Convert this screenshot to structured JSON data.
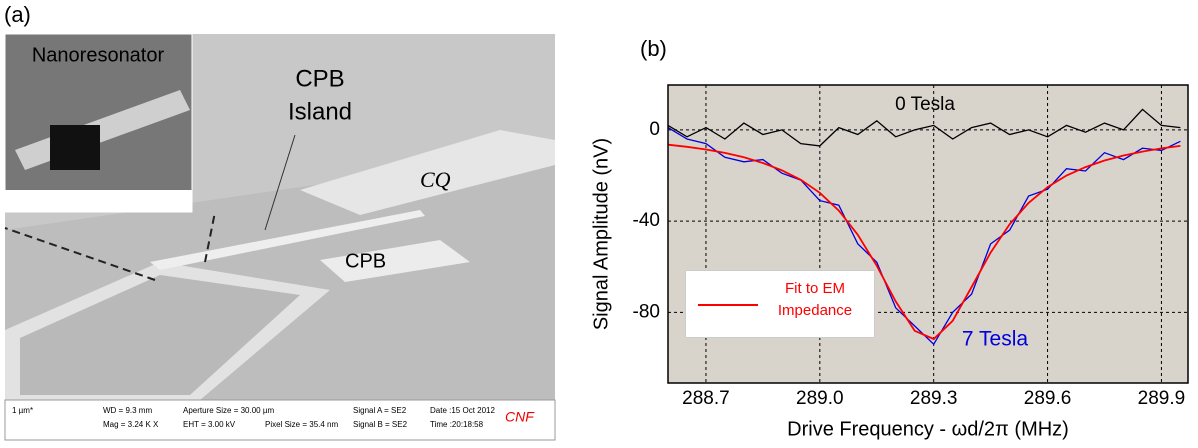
{
  "image_panel": {
    "panel_label": "(a)",
    "inset_label": "Nanoresonator",
    "island_label_1": "CPB",
    "island_label_2": "Island",
    "capacitor_label": "CQ",
    "cpb_label": "CPB",
    "info_bar": [
      "1 µm*",
      "WD = 9.3 mm",
      "Mag = 3.24 K X",
      "Aperture Size = 30.00 µm",
      "EHT = 3.00 kV",
      "Pixel Size = 35.4 nm",
      "Signal A = SE2",
      "Signal B = SE2",
      "Date :15 Oct 2012",
      "Time :20:18:58",
      "CNF"
    ]
  },
  "chart_data": {
    "type": "line",
    "panel_label": "(b)",
    "x_label": "Drive Frequency - ωd/2π (MHz)",
    "y_label": "Signal  Amplitude (nV)",
    "x": [
      288.6,
      288.65,
      288.7,
      288.75,
      288.8,
      288.85,
      288.9,
      288.95,
      289.0,
      289.05,
      289.1,
      289.15,
      289.2,
      289.25,
      289.3,
      289.35,
      289.4,
      289.45,
      289.5,
      289.55,
      289.6,
      289.65,
      289.7,
      289.75,
      289.8,
      289.85,
      289.9,
      289.95
    ],
    "series": [
      {
        "name": "0 Tesla",
        "color": "#000000",
        "values": [
          2,
          -3,
          1,
          -4,
          3,
          -2,
          0,
          -6,
          -7,
          1,
          -2,
          4,
          -3,
          0,
          2,
          -4,
          1,
          3,
          -2,
          0,
          -3,
          2,
          -1,
          3,
          0,
          9,
          2,
          1
        ]
      },
      {
        "name": "7 Tesla",
        "color": "#0000dd",
        "values": [
          1,
          -4,
          -6,
          -12,
          -14,
          -13,
          -19,
          -22,
          -31,
          -33,
          -50,
          -58,
          -78,
          -86,
          -94,
          -80,
          -72,
          -50,
          -44,
          -29,
          -26,
          -17,
          -18,
          -10,
          -13,
          -8,
          -9,
          -5
        ]
      },
      {
        "name": "Fit to EM Impedance",
        "color": "#ff0000",
        "values": [
          -6.5,
          -7.4,
          -8.6,
          -10.1,
          -12.0,
          -14.5,
          -17.7,
          -21.9,
          -27.6,
          -35.4,
          -46.0,
          -59.6,
          -75.2,
          -88.1,
          -91.7,
          -83.7,
          -68.9,
          -53.8,
          -41.4,
          -32.0,
          -25.1,
          -20.0,
          -16.3,
          -13.4,
          -11.2,
          -9.5,
          -8.1,
          -7.0
        ]
      }
    ],
    "xlim": [
      288.6,
      289.97
    ],
    "ylim": [
      -111,
      19.7
    ],
    "xticks": [
      288.7,
      {
        "value": 289.0,
        "label": "289.0"
      },
      289.3,
      289.6,
      289.9
    ],
    "yticks": [
      0,
      -40,
      -80
    ],
    "grid": true,
    "plot_background": "#d8d4cc"
  }
}
